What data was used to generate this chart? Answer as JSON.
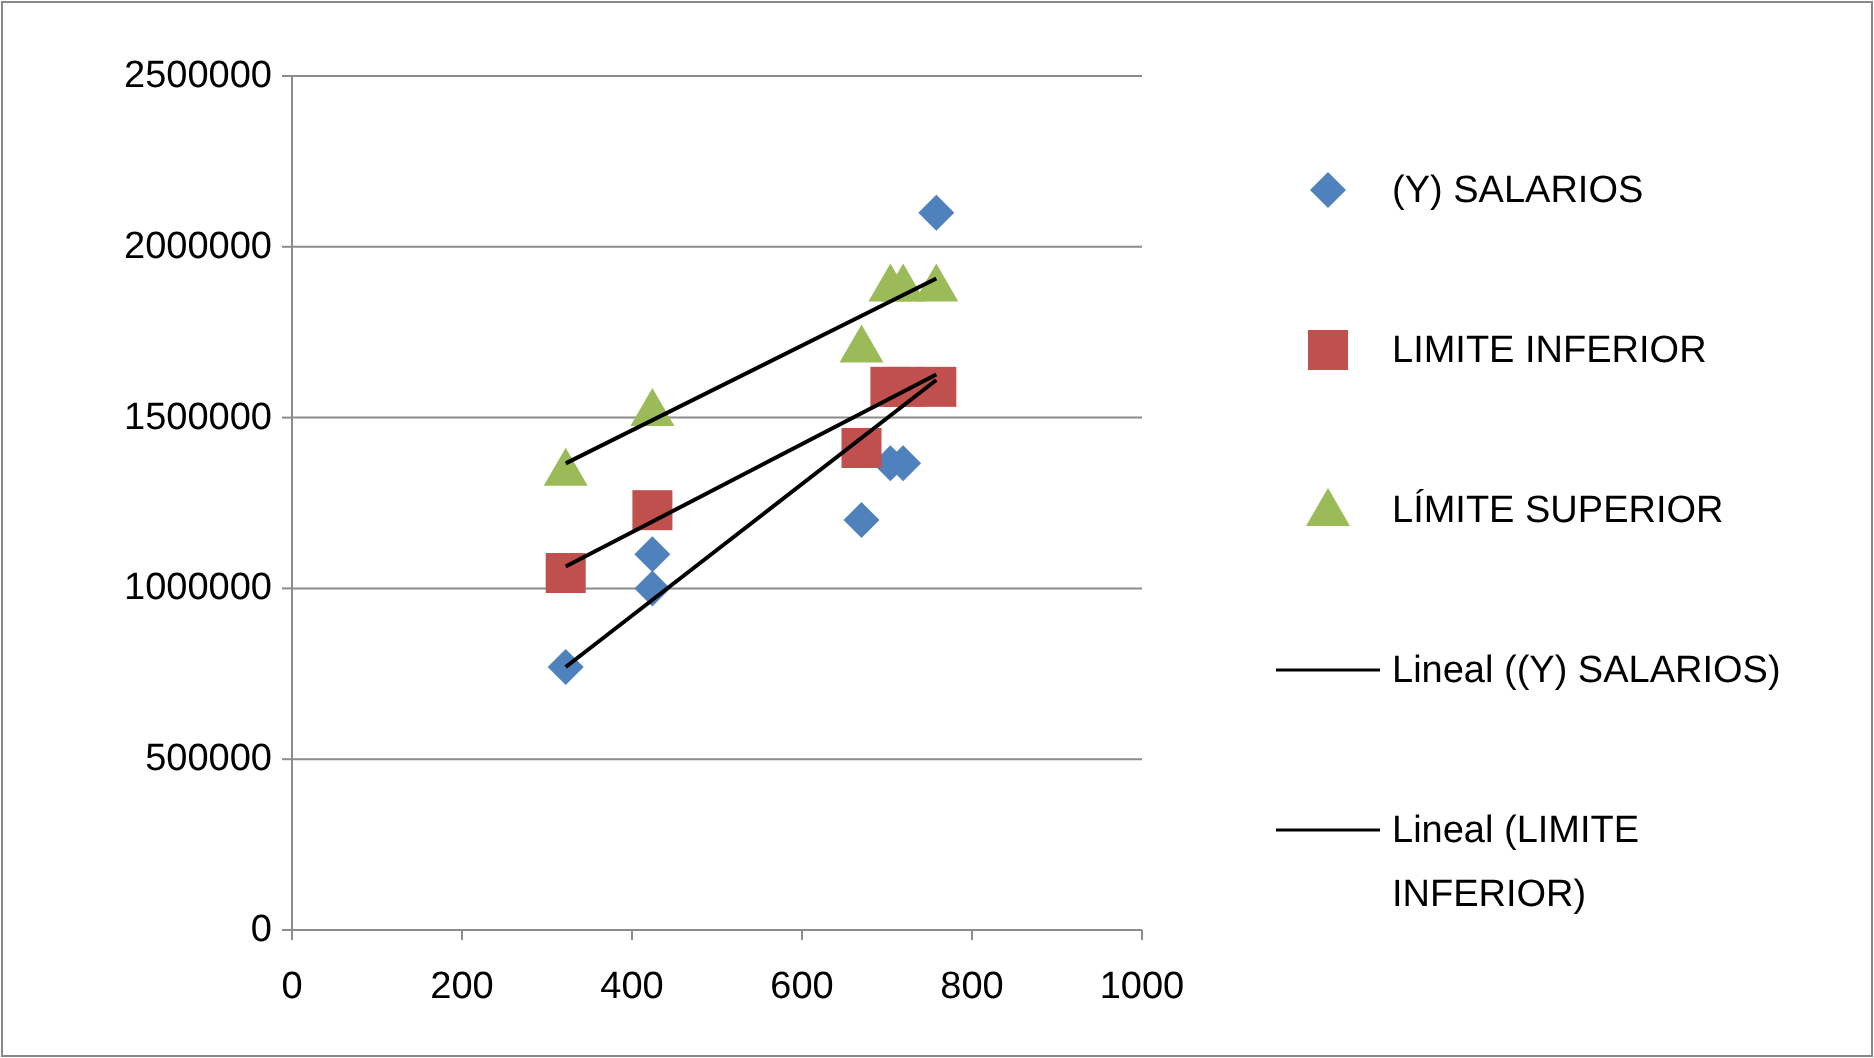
{
  "chart_data": {
    "type": "scatter",
    "xlim": [
      0,
      1000
    ],
    "xticks": [
      0,
      200,
      400,
      600,
      800,
      1000
    ],
    "ylim": [
      0,
      2500000
    ],
    "yticks": [
      0,
      500000,
      1000000,
      1500000,
      2000000,
      2500000
    ],
    "grid": "y",
    "legend": "right",
    "series": [
      {
        "name": "(Y) SALARIOS",
        "color": "#4f81bd",
        "marker": "diamond",
        "x": [
          322,
          424,
          424,
          670,
          704,
          719,
          758
        ],
        "values": [
          770000,
          1100000,
          1000000,
          1200000,
          1366000,
          1366000,
          2100000
        ]
      },
      {
        "name": "LIMITE INFERIOR",
        "color": "#c0504d",
        "marker": "square",
        "x": [
          322,
          424,
          670,
          704,
          719,
          758
        ],
        "values": [
          1045000,
          1229000,
          1411000,
          1590000,
          1590000,
          1590000
        ]
      },
      {
        "name": "LÍMITE SUPERIOR",
        "color": "#9bbb59",
        "marker": "triangle",
        "x": [
          322,
          424,
          670,
          704,
          719,
          758
        ],
        "values": [
          1347000,
          1522000,
          1708000,
          1887000,
          1887000,
          1887000
        ]
      },
      {
        "name": "Lineal ((Y) SALARIOS)",
        "type": "line",
        "color": "#000000",
        "marker": "none",
        "x": [
          322,
          758
        ],
        "values": [
          770000,
          1610000
        ]
      },
      {
        "name": "Lineal (LIMITE INFERIOR)",
        "type": "line",
        "color": "#000000",
        "marker": "none",
        "x": [
          322,
          758
        ],
        "values": [
          1064000,
          1626000
        ]
      },
      {
        "type": "line",
        "color": "#000000",
        "marker": "none",
        "x": [
          322,
          758
        ],
        "values": [
          1366000,
          1907000
        ]
      }
    ]
  }
}
